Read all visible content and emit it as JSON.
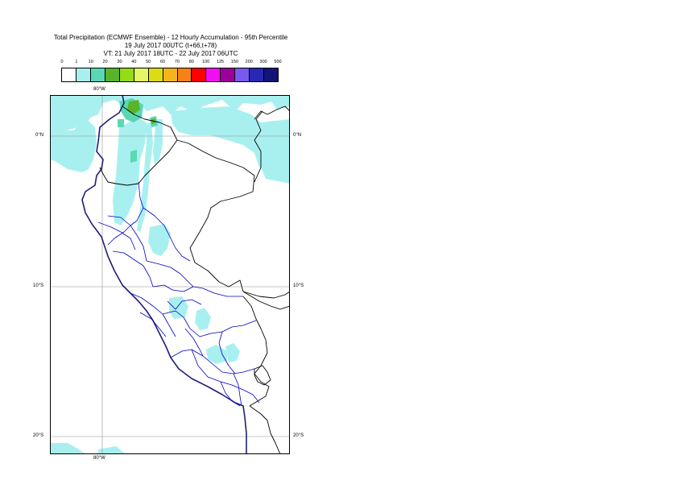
{
  "title": {
    "line1": "Total Precipitation (ECMWF Ensemble) - 12 Hourly Accumulation - 95th Percentile",
    "line2": "19 July 2017 00UTC (t+66,t+78)",
    "line3": "VT: 21 July 2017 18UTC - 22 July 2017 06UTC"
  },
  "legend": {
    "labels": [
      "0",
      "1",
      "10",
      "20",
      "30",
      "40",
      "50",
      "60",
      "70",
      "80",
      "100",
      "125",
      "150",
      "200",
      "300",
      "500"
    ],
    "colors": [
      "#ffffff",
      "#a8f0f0",
      "#5ad8b4",
      "#5ab42a",
      "#96dc14",
      "#e6f564",
      "#dcdc14",
      "#f5b41e",
      "#f58214",
      "#ff0000",
      "#f00ff0",
      "#9b009b",
      "#785af0",
      "#2828b4",
      "#141478"
    ]
  },
  "map": {
    "lat_labels": {
      "north": "0°N",
      "ten_s": "10°S",
      "twenty_s": "20°S"
    },
    "lon_labels": {
      "top": "80°W",
      "bottom": "80°W"
    },
    "colors": {
      "coast": "#1e1e78",
      "border": "#000000",
      "admin": "#0000c8",
      "grid": "#909090",
      "precip_light": "#a8f0f0",
      "precip_mid": "#5ad8b4",
      "precip_high": "#5ab42a"
    }
  }
}
